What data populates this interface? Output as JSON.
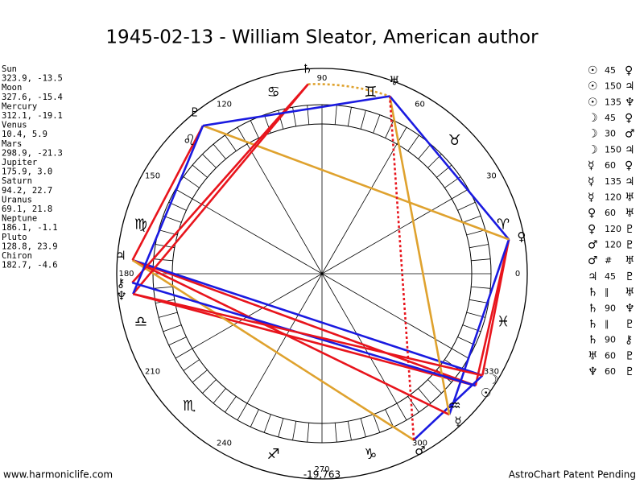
{
  "title": "1945-02-13 - William Sleator, American author",
  "planets": [
    {
      "name": "Sun",
      "coords": "323.9, -13.5"
    },
    {
      "name": "Moon",
      "coords": "327.6, -15.4"
    },
    {
      "name": "Mercury",
      "coords": "312.1, -19.1"
    },
    {
      "name": "Venus",
      "coords": "10.4, 5.9"
    },
    {
      "name": "Mars",
      "coords": "298.9, -21.3"
    },
    {
      "name": "Jupiter",
      "coords": "175.9, 3.0"
    },
    {
      "name": "Saturn",
      "coords": "94.2, 22.7"
    },
    {
      "name": "Uranus",
      "coords": "69.1, 21.8"
    },
    {
      "name": "Neptune",
      "coords": "186.1, -1.1"
    },
    {
      "name": "Pluto",
      "coords": "128.8, 23.9"
    },
    {
      "name": "Chiron",
      "coords": "182.7, -4.6"
    }
  ],
  "aspects": [
    [
      "☉",
      "45",
      "♀"
    ],
    [
      "☉",
      "150",
      "♃"
    ],
    [
      "☉",
      "135",
      "♆"
    ],
    [
      "☽",
      "45",
      "♀"
    ],
    [
      "☽",
      "30",
      "♂"
    ],
    [
      "☽",
      "150",
      "♃"
    ],
    [
      "☿",
      "60",
      "♀"
    ],
    [
      "☿",
      "135",
      "♃"
    ],
    [
      "☿",
      "120",
      "♅"
    ],
    [
      "♀",
      "60",
      "♅"
    ],
    [
      "♀",
      "120",
      "♇"
    ],
    [
      "♂",
      "120",
      "♇"
    ],
    [
      "♂",
      "#",
      "♅"
    ],
    [
      "♃",
      "45",
      "♇"
    ],
    [
      "♄",
      "∥",
      "♅"
    ],
    [
      "♄",
      "90",
      "♆"
    ],
    [
      "♄",
      "∥",
      "♇"
    ],
    [
      "♄",
      "90",
      "⚷"
    ],
    [
      "♅",
      "60",
      "♇"
    ],
    [
      "♆",
      "60",
      "♇"
    ]
  ],
  "wheel": {
    "degree_labels": [
      "0",
      "30",
      "60",
      "90",
      "120",
      "150",
      "180",
      "210",
      "240",
      "270",
      "300",
      "330"
    ],
    "signs": [
      "♈",
      "♉",
      "♊",
      "♋",
      "♌",
      "♍",
      "♎",
      "♏",
      "♐",
      "♑",
      "♒",
      "♓"
    ],
    "planet_glyphs": [
      "☉",
      "☽",
      "☿",
      "♀",
      "♂",
      "♃",
      "♄",
      "♅",
      "♆",
      "♇",
      "⚷"
    ]
  },
  "footer": {
    "left": "www.harmoniclife.com",
    "center": "-19,763",
    "right": "AstroChart Patent Pending"
  }
}
